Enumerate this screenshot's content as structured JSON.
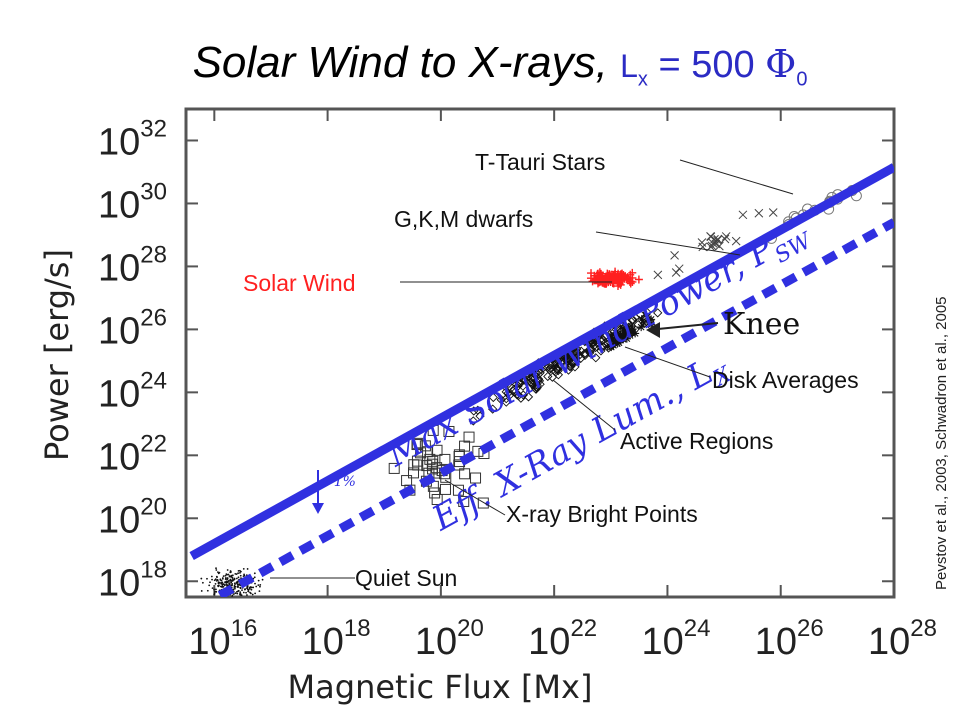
{
  "title": {
    "main": "Solar Wind to X-rays,",
    "eq_lhs": "L",
    "eq_sub": "x",
    "eq_mid": " = 500 ",
    "eq_phi": "Φ",
    "eq_phi_sub": "0"
  },
  "colors": {
    "accent_blue": "#3030e0",
    "solar_wind_red": "#ff2020",
    "title_blue": "#2b2bc4"
  },
  "chart_data": {
    "type": "scatter",
    "scale": "log-log",
    "xlabel": "Magnetic Flux [Mx]",
    "ylabel": "Power [erg/s]",
    "xlim_exp": [
      15.5,
      28
    ],
    "ylim_exp": [
      17.5,
      33
    ],
    "x_tick_exps": [
      16,
      18,
      20,
      22,
      24,
      26,
      28
    ],
    "y_tick_exps": [
      18,
      20,
      22,
      24,
      26,
      28,
      30,
      32
    ],
    "tick_base": "10",
    "lines": [
      {
        "name": "Max Solar Wind Power, P",
        "name_sub": "SW",
        "style": "solid",
        "color": "#3030e0",
        "x_exp": [
          15.6,
          28.0
        ],
        "y_exp": [
          18.8,
          31.15
        ]
      },
      {
        "name": "Eff. X-Ray Lum., L",
        "name_sub": "X",
        "style": "dashed",
        "color": "#3030e0",
        "x_exp": [
          16.1,
          28.0
        ],
        "y_exp": [
          17.55,
          29.4
        ]
      }
    ],
    "clusters": [
      {
        "label": "Quiet Sun",
        "marker": "dot",
        "color": "#111111",
        "x_exp": 16.35,
        "y_exp": 17.9,
        "sx": 0.22,
        "sy": 0.2,
        "n": 260
      },
      {
        "label": "X-ray Bright Points",
        "marker": "square",
        "color": "#333333",
        "x_exp": 19.9,
        "y_exp": 21.6,
        "sx": 0.4,
        "sy": 0.55,
        "n": 45
      },
      {
        "label": "Active Regions",
        "marker": "diamond",
        "color": "#111111",
        "x_exp": 22.2,
        "y_exp": 25.0,
        "sx": 0.65,
        "sy": 0.6,
        "n": 200
      },
      {
        "label": "Solar Wind",
        "marker": "plus",
        "color": "#ff2020",
        "x_exp": 23.05,
        "y_exp": 27.6,
        "sx": 0.2,
        "sy": 0.12,
        "n": 110
      },
      {
        "label": "Disk Averages",
        "marker": "asterisk",
        "color": "#111111",
        "x_exp": 23.3,
        "y_exp": 25.9,
        "sx": 0.22,
        "sy": 0.35,
        "n": 40
      },
      {
        "label": "G,K,M dwarfs",
        "marker": "x",
        "color": "#444444",
        "x_exp": 24.7,
        "y_exp": 28.7,
        "sx": 0.45,
        "sy": 0.55,
        "n": 22
      },
      {
        "label": "T-Tauri Stars",
        "marker": "circle",
        "color": "#777777",
        "x_exp": 26.8,
        "y_exp": 30.0,
        "sx": 0.55,
        "sy": 0.35,
        "n": 16
      }
    ],
    "annotations": {
      "t_tauri": "T-Tauri Stars",
      "gkm": "G,K,M dwarfs",
      "solar_wind": "Solar Wind",
      "knee": "Knee",
      "disk": "Disk Averages",
      "active": "Active Regions",
      "xbp": "X-ray Bright Points",
      "quiet": "Quiet Sun",
      "one_percent": "~1%",
      "citation": "Pevstov et al., 2003, Schwadron et al., 2005"
    }
  }
}
